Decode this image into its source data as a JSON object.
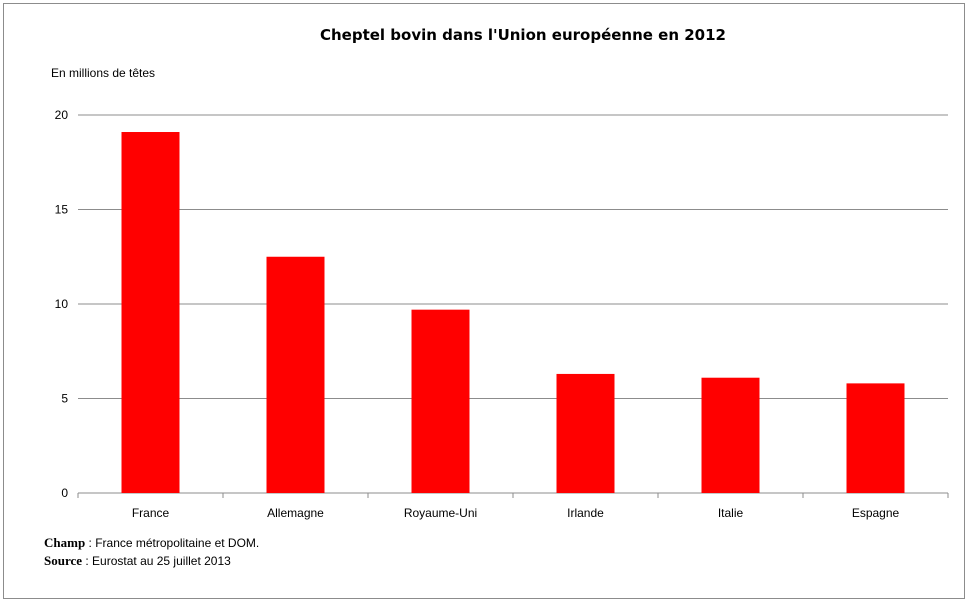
{
  "chart_data": {
    "type": "bar",
    "title": "Cheptel bovin dans l'Union européenne en 2012",
    "ylabel": "En millions de têtes",
    "categories": [
      "France",
      "Allemagne",
      "Royaume-Uni",
      "Irlande",
      "Italie",
      "Espagne"
    ],
    "values": [
      19.1,
      12.5,
      9.7,
      6.3,
      6.1,
      5.8
    ],
    "ylim": [
      0,
      20
    ],
    "yticks": [
      "0",
      "5",
      "10",
      "15",
      "20"
    ],
    "grid": true,
    "bar_color": "#ff0000"
  },
  "notes": {
    "champ_key": "Champ",
    "champ_text": " : France métropolitaine et DOM.",
    "source_key": "Source",
    "source_text": " : Eurostat au 25 juillet 2013"
  }
}
